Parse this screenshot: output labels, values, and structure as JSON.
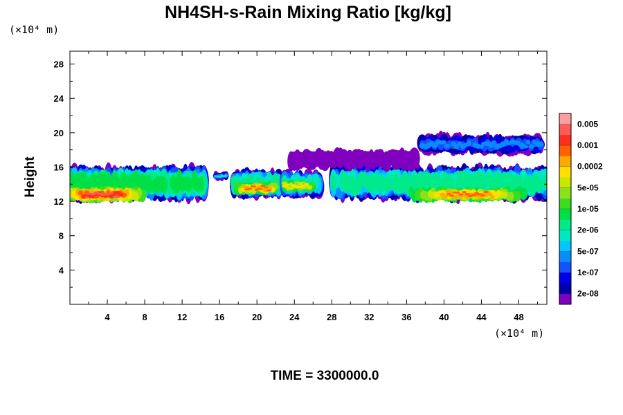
{
  "chart_data": {
    "type": "heatmap",
    "title": "NH4SH-s-Rain Mixing Ratio [kg/kg]",
    "xlabel": "",
    "ylabel": "Height",
    "x_unit_label": "(×10⁴ m)",
    "y_unit_label": "(×10⁴ m)",
    "xlim": [
      0,
      51
    ],
    "ylim": [
      0,
      29.5
    ],
    "x_ticks": [
      4,
      8,
      12,
      16,
      20,
      24,
      28,
      32,
      36,
      40,
      44,
      48
    ],
    "y_ticks": [
      4,
      8,
      12,
      16,
      20,
      24,
      28
    ],
    "grid": false,
    "colorbar": {
      "placement": "right",
      "colors": [
        "#7f00bf",
        "#0000aa",
        "#0000e8",
        "#1452ff",
        "#0a8cff",
        "#00c8ff",
        "#00e8c0",
        "#00e98a",
        "#00e046",
        "#3cdc1e",
        "#8ce21a",
        "#c8e800",
        "#ffe000",
        "#ffaa00",
        "#ff6000",
        "#ff2e1e",
        "#ff5a5a",
        "#ff9ea0"
      ],
      "labels": [
        "2e-08",
        "1e-07",
        "5e-07",
        "2e-06",
        "1e-05",
        "5e-05",
        "0.0002",
        "0.001",
        "0.005"
      ]
    },
    "cloud_regions": [
      {
        "x_range": [
          0,
          14.5
        ],
        "z_range": [
          12.2,
          16.0
        ],
        "peak": "5e-03",
        "peak_x": 3.5,
        "peak_z": 12.8
      },
      {
        "x_range": [
          15.5,
          16.8
        ],
        "z_range": [
          14.5,
          15.4
        ],
        "peak": "2e-06"
      },
      {
        "x_range": [
          17.4,
          22.5
        ],
        "z_range": [
          12.5,
          15.6
        ],
        "peak": "1e-03",
        "peak_x": 20.0,
        "peak_z": 13.5
      },
      {
        "x_range": [
          22.8,
          26.8
        ],
        "z_range": [
          12.5,
          15.5
        ],
        "peak": "2e-04",
        "peak_x": 24.2,
        "peak_z": 13.8
      },
      {
        "x_range": [
          28.0,
          51.0
        ],
        "z_range": [
          12.3,
          16.0
        ],
        "peak": "1e-03",
        "peak_x": 42.5,
        "peak_z": 12.8
      },
      {
        "x_range": [
          23.5,
          37.0
        ],
        "z_range": [
          15.8,
          18.0
        ],
        "peak": "2e-08"
      },
      {
        "x_range": [
          37.5,
          50.5
        ],
        "z_range": [
          17.5,
          19.8
        ],
        "peak": "5e-07"
      }
    ]
  },
  "footer": {
    "time_label": "TIME = 3300000.0"
  }
}
